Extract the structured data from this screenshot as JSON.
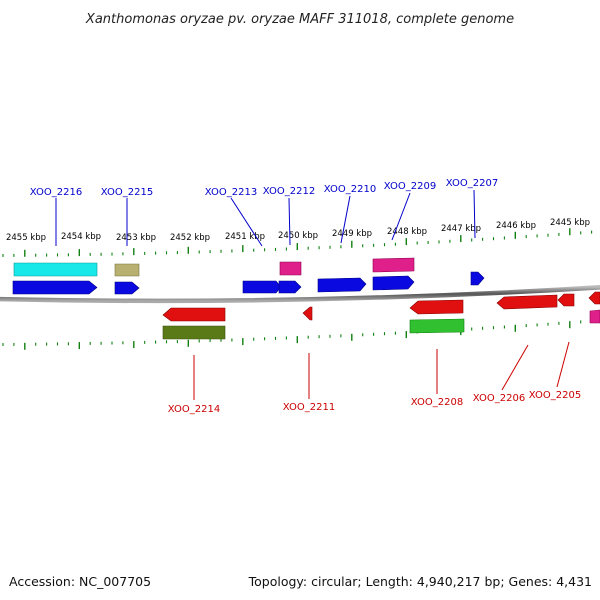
{
  "title": "Xanthomonas oryzae pv. oryzae MAFF 311018, complete genome",
  "footer": {
    "accession": "Accession: NC_007705",
    "summary": "Topology: circular; Length: 4,940,217 bp; Genes: 4,431"
  },
  "ruler_labels": [
    "2455 kbp",
    "2454 kbp",
    "2453 kbp",
    "2452 kbp",
    "2451 kbp",
    "2450 kbp",
    "2449 kbp",
    "2448 kbp",
    "2447 kbp",
    "2446 kbp",
    "2445 kbp"
  ],
  "top_gene_labels": [
    "XOO_2216",
    "XOO_2215",
    "XOO_2213",
    "XOO_2212",
    "XOO_2210",
    "XOO_2209",
    "XOO_2207"
  ],
  "bottom_gene_labels": [
    "XOO_2214",
    "XOO_2211",
    "XOO_2208",
    "XOO_2206",
    "XOO_2205"
  ],
  "colors": {
    "forward_label": "#0000cc",
    "reverse_label": "#cc0000",
    "blue_gene": "#0a0ae0",
    "red_gene": "#e01010",
    "cyan_gene": "#18e8e8",
    "olive_gene": "#b8b070",
    "magenta_gene": "#e0208a",
    "green_gene": "#30c030",
    "dark_olive_gene": "#5a7a18",
    "tick": "#108010"
  }
}
